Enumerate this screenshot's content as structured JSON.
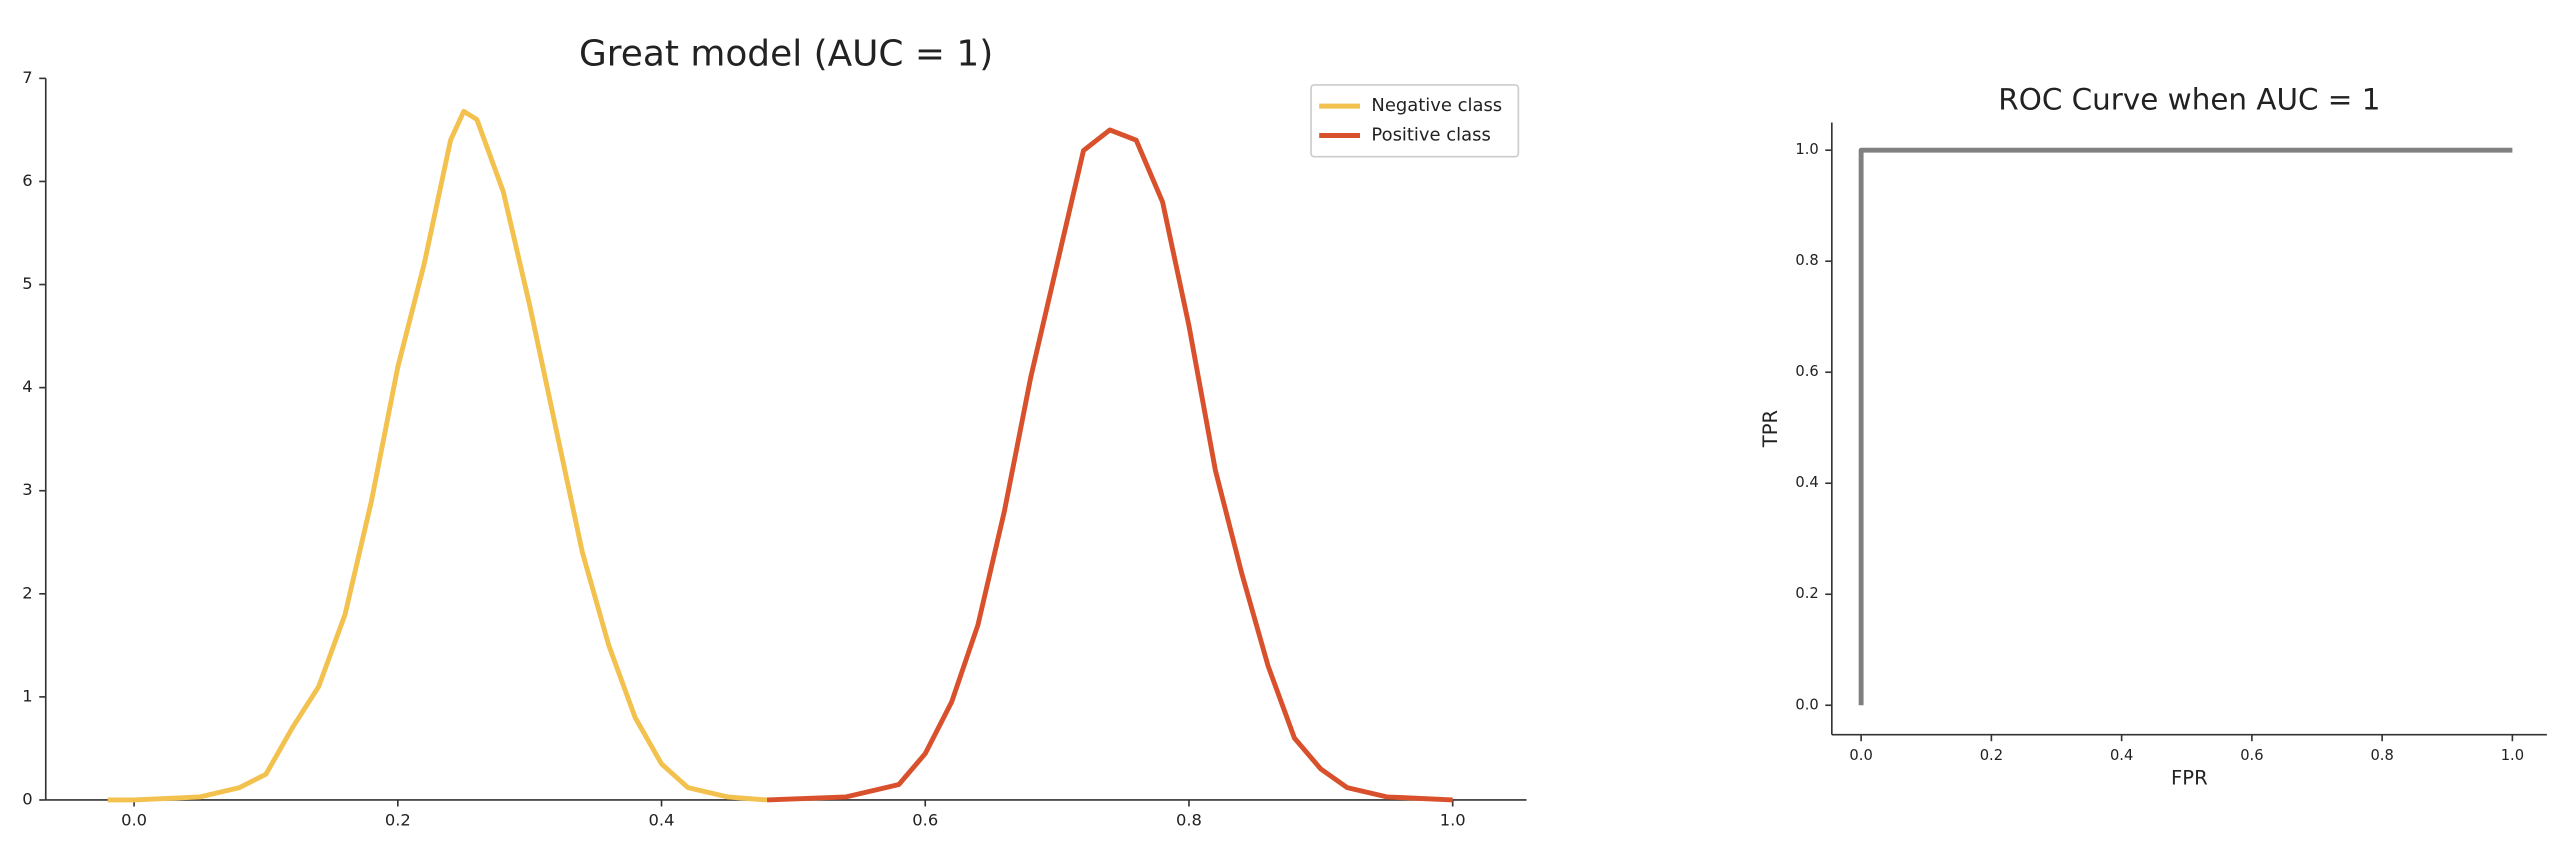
{
  "chart_data": [
    {
      "type": "line",
      "title": "Great model (AUC = 1)",
      "xlim": [
        -0.067,
        1.056
      ],
      "ylim": [
        0,
        7
      ],
      "xticks": [
        {
          "value": 0,
          "label": "0.0"
        },
        0.2,
        0.4,
        0.6,
        0.8,
        {
          "value": 1,
          "label": "1.0"
        }
      ],
      "yticks": [
        0,
        1,
        2,
        3,
        4,
        5,
        6,
        7
      ],
      "legend": "upper right",
      "series": [
        {
          "name": "Negative class",
          "color": "#f2c14e",
          "x": [
            -0.02,
            0.0,
            0.05,
            0.08,
            0.1,
            0.12,
            0.14,
            0.16,
            0.18,
            0.2,
            0.22,
            0.24,
            0.25,
            0.26,
            0.28,
            0.3,
            0.32,
            0.34,
            0.36,
            0.38,
            0.4,
            0.42,
            0.45,
            0.48
          ],
          "values": [
            0,
            0,
            0.03,
            0.12,
            0.25,
            0.7,
            1.1,
            1.8,
            2.9,
            4.2,
            5.2,
            6.4,
            6.68,
            6.6,
            5.9,
            4.8,
            3.6,
            2.4,
            1.5,
            0.8,
            0.35,
            0.12,
            0.03,
            0
          ]
        },
        {
          "name": "Positive class",
          "color": "#d9512c",
          "x": [
            0.48,
            0.54,
            0.58,
            0.6,
            0.62,
            0.64,
            0.66,
            0.68,
            0.7,
            0.72,
            0.74,
            0.76,
            0.78,
            0.8,
            0.82,
            0.84,
            0.86,
            0.88,
            0.9,
            0.92,
            0.95,
            1.0
          ],
          "values": [
            0,
            0.03,
            0.15,
            0.45,
            0.95,
            1.7,
            2.8,
            4.1,
            5.2,
            6.3,
            6.5,
            6.4,
            5.8,
            4.6,
            3.2,
            2.2,
            1.3,
            0.6,
            0.3,
            0.12,
            0.03,
            0
          ]
        }
      ]
    },
    {
      "type": "line",
      "title": "ROC Curve when AUC = 1",
      "x_label": "FPR",
      "y_label": "TPR",
      "xlim": [
        -0.045,
        1.053
      ],
      "ylim": [
        -0.053,
        1.05
      ],
      "xticks": [
        {
          "value": 0,
          "label": "0.0"
        },
        0.2,
        0.4,
        0.6,
        0.8,
        {
          "value": 1,
          "label": "1.0"
        }
      ],
      "yticks": [
        {
          "value": 0,
          "label": "0.0"
        },
        0.2,
        0.4,
        0.6,
        0.8,
        {
          "value": 1,
          "label": "1.0"
        }
      ],
      "series": [
        {
          "color": "#808080",
          "x": [
            0,
            0,
            1
          ],
          "values": [
            0,
            1,
            1
          ]
        }
      ]
    }
  ]
}
